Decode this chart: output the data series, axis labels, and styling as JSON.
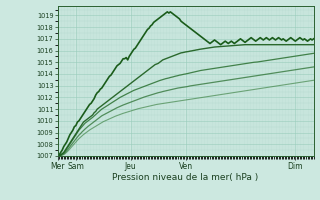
{
  "xlabel": "Pression niveau de la mer( hPa )",
  "bg_color": "#cce8e0",
  "plot_bg_color": "#cce8e0",
  "grid_color": "#99ccbb",
  "ylim": [
    1007,
    1019.8
  ],
  "yticks": [
    1007,
    1008,
    1009,
    1010,
    1011,
    1012,
    1013,
    1014,
    1015,
    1016,
    1017,
    1018,
    1019
  ],
  "xtick_labels": [
    "Mer",
    "Sam",
    "Jeu",
    "Ven",
    "Dim"
  ],
  "xtick_positions": [
    0,
    12,
    48,
    84,
    156
  ],
  "total_points": 169,
  "lines": [
    {
      "comment": "jagged observed/forecast line - peaks at Ven ~1019.3 then drops to ~1017",
      "color": "#1a5c1a",
      "lw": 1.2,
      "alpha": 1.0,
      "y": [
        1007.0,
        1007.1,
        1007.3,
        1007.5,
        1007.8,
        1008.0,
        1008.2,
        1008.5,
        1008.8,
        1009.0,
        1009.2,
        1009.5,
        1009.6,
        1009.9,
        1010.0,
        1010.2,
        1010.4,
        1010.6,
        1010.8,
        1011.0,
        1011.2,
        1011.4,
        1011.5,
        1011.7,
        1011.9,
        1012.2,
        1012.4,
        1012.5,
        1012.7,
        1012.8,
        1013.0,
        1013.2,
        1013.4,
        1013.6,
        1013.8,
        1013.9,
        1014.1,
        1014.3,
        1014.5,
        1014.7,
        1014.8,
        1014.9,
        1015.1,
        1015.3,
        1015.3,
        1015.4,
        1015.2,
        1015.5,
        1015.7,
        1015.9,
        1016.1,
        1016.2,
        1016.4,
        1016.6,
        1016.8,
        1017.0,
        1017.2,
        1017.4,
        1017.6,
        1017.8,
        1017.9,
        1018.1,
        1018.2,
        1018.4,
        1018.5,
        1018.6,
        1018.7,
        1018.8,
        1018.9,
        1019.0,
        1019.1,
        1019.2,
        1019.3,
        1019.2,
        1019.3,
        1019.2,
        1019.1,
        1019.0,
        1018.9,
        1018.8,
        1018.7,
        1018.5,
        1018.4,
        1018.3,
        1018.2,
        1018.1,
        1018.0,
        1017.9,
        1017.8,
        1017.7,
        1017.6,
        1017.5,
        1017.4,
        1017.3,
        1017.2,
        1017.1,
        1017.0,
        1016.9,
        1016.8,
        1016.7,
        1016.6,
        1016.7,
        1016.8,
        1016.9,
        1016.8,
        1016.7,
        1016.6,
        1016.5,
        1016.6,
        1016.7,
        1016.8,
        1016.7,
        1016.6,
        1016.7,
        1016.8,
        1016.7,
        1016.6,
        1016.7,
        1016.8,
        1016.9,
        1017.0,
        1016.9,
        1016.8,
        1016.7,
        1016.8,
        1016.9,
        1017.0,
        1017.1,
        1017.0,
        1016.9,
        1016.8,
        1016.9,
        1017.0,
        1017.1,
        1017.0,
        1016.9,
        1017.0,
        1017.1,
        1017.0,
        1016.9,
        1017.0,
        1017.1,
        1017.0,
        1016.9,
        1017.0,
        1017.1,
        1017.0,
        1016.9,
        1017.0,
        1016.9,
        1016.8,
        1016.9,
        1017.0,
        1017.1,
        1017.0,
        1016.9,
        1016.8,
        1016.9,
        1017.0,
        1017.1,
        1017.0,
        1016.9,
        1017.0,
        1016.9,
        1016.8,
        1016.9,
        1017.0,
        1016.9,
        1017.0
      ]
    },
    {
      "comment": "straight forecast line going to ~1016.5 at end",
      "color": "#1a5c1a",
      "lw": 1.0,
      "alpha": 0.9,
      "y": [
        1007.0,
        1007.05,
        1007.1,
        1007.2,
        1007.3,
        1007.5,
        1007.7,
        1007.9,
        1008.1,
        1008.3,
        1008.5,
        1008.7,
        1008.9,
        1009.1,
        1009.3,
        1009.5,
        1009.7,
        1009.9,
        1010.0,
        1010.1,
        1010.2,
        1010.3,
        1010.4,
        1010.5,
        1010.7,
        1010.8,
        1011.0,
        1011.1,
        1011.2,
        1011.3,
        1011.4,
        1011.5,
        1011.6,
        1011.7,
        1011.8,
        1011.9,
        1012.0,
        1012.1,
        1012.2,
        1012.3,
        1012.4,
        1012.5,
        1012.6,
        1012.7,
        1012.8,
        1012.9,
        1013.0,
        1013.1,
        1013.2,
        1013.3,
        1013.4,
        1013.5,
        1013.6,
        1013.7,
        1013.8,
        1013.9,
        1014.0,
        1014.1,
        1014.2,
        1014.3,
        1014.4,
        1014.5,
        1014.6,
        1014.7,
        1014.8,
        1014.85,
        1014.9,
        1015.0,
        1015.1,
        1015.2,
        1015.25,
        1015.3,
        1015.35,
        1015.4,
        1015.45,
        1015.5,
        1015.55,
        1015.6,
        1015.65,
        1015.7,
        1015.75,
        1015.8,
        1015.82,
        1015.85,
        1015.88,
        1015.9,
        1015.92,
        1015.95,
        1015.97,
        1016.0,
        1016.02,
        1016.05,
        1016.07,
        1016.1,
        1016.12,
        1016.14,
        1016.16,
        1016.18,
        1016.2,
        1016.22,
        1016.24,
        1016.26,
        1016.28,
        1016.3,
        1016.31,
        1016.32,
        1016.33,
        1016.34,
        1016.35,
        1016.36,
        1016.37,
        1016.38,
        1016.39,
        1016.4,
        1016.41,
        1016.42,
        1016.43,
        1016.44,
        1016.45,
        1016.46,
        1016.47,
        1016.48,
        1016.49,
        1016.5,
        1016.5,
        1016.5,
        1016.5,
        1016.5,
        1016.5,
        1016.5,
        1016.5,
        1016.5,
        1016.5,
        1016.5,
        1016.5,
        1016.5,
        1016.5,
        1016.5,
        1016.5,
        1016.5,
        1016.5,
        1016.5,
        1016.5,
        1016.5,
        1016.5,
        1016.5,
        1016.5,
        1016.5,
        1016.5,
        1016.5,
        1016.5,
        1016.5,
        1016.5,
        1016.5,
        1016.5,
        1016.5,
        1016.5,
        1016.5,
        1016.5,
        1016.5,
        1016.5,
        1016.5,
        1016.5,
        1016.5,
        1016.5,
        1016.5,
        1016.5,
        1016.5,
        1016.5
      ]
    },
    {
      "comment": "straight forecast going to ~1015.8",
      "color": "#2a7030",
      "lw": 0.9,
      "alpha": 0.85,
      "y": [
        1007.0,
        1007.04,
        1007.08,
        1007.15,
        1007.25,
        1007.4,
        1007.6,
        1007.8,
        1008.0,
        1008.2,
        1008.4,
        1008.6,
        1008.8,
        1009.0,
        1009.2,
        1009.35,
        1009.5,
        1009.65,
        1009.8,
        1009.9,
        1010.0,
        1010.1,
        1010.2,
        1010.3,
        1010.42,
        1010.54,
        1010.65,
        1010.77,
        1010.88,
        1011.0,
        1011.08,
        1011.17,
        1011.25,
        1011.33,
        1011.42,
        1011.5,
        1011.58,
        1011.67,
        1011.75,
        1011.83,
        1011.92,
        1012.0,
        1012.07,
        1012.13,
        1012.2,
        1012.27,
        1012.33,
        1012.4,
        1012.47,
        1012.53,
        1012.6,
        1012.65,
        1012.7,
        1012.75,
        1012.8,
        1012.85,
        1012.9,
        1012.95,
        1013.0,
        1013.05,
        1013.1,
        1013.15,
        1013.2,
        1013.25,
        1013.3,
        1013.35,
        1013.4,
        1013.44,
        1013.48,
        1013.52,
        1013.56,
        1013.6,
        1013.63,
        1013.66,
        1013.7,
        1013.73,
        1013.76,
        1013.8,
        1013.83,
        1013.86,
        1013.9,
        1013.92,
        1013.95,
        1013.98,
        1014.0,
        1014.03,
        1014.06,
        1014.09,
        1014.12,
        1014.15,
        1014.18,
        1014.21,
        1014.24,
        1014.27,
        1014.3,
        1014.32,
        1014.34,
        1014.36,
        1014.38,
        1014.4,
        1014.42,
        1014.44,
        1014.46,
        1014.48,
        1014.5,
        1014.52,
        1014.54,
        1014.56,
        1014.58,
        1014.6,
        1014.62,
        1014.64,
        1014.66,
        1014.68,
        1014.7,
        1014.72,
        1014.74,
        1014.76,
        1014.78,
        1014.8,
        1014.82,
        1014.84,
        1014.86,
        1014.88,
        1014.9,
        1014.92,
        1014.94,
        1014.96,
        1014.98,
        1015.0,
        1015.01,
        1015.02,
        1015.04,
        1015.06,
        1015.08,
        1015.1,
        1015.12,
        1015.14,
        1015.16,
        1015.18,
        1015.2,
        1015.22,
        1015.24,
        1015.26,
        1015.28,
        1015.3,
        1015.32,
        1015.34,
        1015.36,
        1015.38,
        1015.4,
        1015.42,
        1015.44,
        1015.46,
        1015.48,
        1015.5,
        1015.52,
        1015.54,
        1015.56,
        1015.58,
        1015.6,
        1015.62,
        1015.64,
        1015.66,
        1015.68,
        1015.7,
        1015.72,
        1015.74,
        1015.76
      ]
    },
    {
      "comment": "straight forecast going to ~1015.2",
      "color": "#2a7030",
      "lw": 0.9,
      "alpha": 0.75,
      "y": [
        1007.0,
        1007.03,
        1007.06,
        1007.1,
        1007.18,
        1007.3,
        1007.45,
        1007.6,
        1007.78,
        1007.95,
        1008.12,
        1008.28,
        1008.45,
        1008.62,
        1008.78,
        1008.9,
        1009.05,
        1009.18,
        1009.3,
        1009.42,
        1009.53,
        1009.63,
        1009.73,
        1009.83,
        1009.93,
        1010.03,
        1010.13,
        1010.23,
        1010.33,
        1010.43,
        1010.5,
        1010.57,
        1010.64,
        1010.71,
        1010.78,
        1010.85,
        1010.92,
        1011.0,
        1011.06,
        1011.12,
        1011.18,
        1011.24,
        1011.3,
        1011.35,
        1011.4,
        1011.45,
        1011.5,
        1011.55,
        1011.6,
        1011.65,
        1011.7,
        1011.75,
        1011.8,
        1011.85,
        1011.9,
        1011.95,
        1012.0,
        1012.04,
        1012.08,
        1012.12,
        1012.16,
        1012.2,
        1012.24,
        1012.28,
        1012.32,
        1012.36,
        1012.4,
        1012.43,
        1012.46,
        1012.5,
        1012.53,
        1012.56,
        1012.59,
        1012.62,
        1012.65,
        1012.68,
        1012.71,
        1012.74,
        1012.77,
        1012.8,
        1012.82,
        1012.84,
        1012.86,
        1012.88,
        1012.9,
        1012.92,
        1012.95,
        1012.98,
        1013.0,
        1013.02,
        1013.04,
        1013.06,
        1013.08,
        1013.1,
        1013.12,
        1013.14,
        1013.16,
        1013.18,
        1013.2,
        1013.22,
        1013.24,
        1013.26,
        1013.28,
        1013.3,
        1013.32,
        1013.34,
        1013.36,
        1013.38,
        1013.4,
        1013.42,
        1013.44,
        1013.46,
        1013.48,
        1013.5,
        1013.52,
        1013.54,
        1013.56,
        1013.58,
        1013.6,
        1013.62,
        1013.64,
        1013.66,
        1013.68,
        1013.7,
        1013.72,
        1013.74,
        1013.76,
        1013.78,
        1013.8,
        1013.82,
        1013.84,
        1013.86,
        1013.88,
        1013.9,
        1013.92,
        1013.94,
        1013.96,
        1013.98,
        1014.0,
        1014.02,
        1014.04,
        1014.06,
        1014.08,
        1014.1,
        1014.12,
        1014.14,
        1014.16,
        1014.18,
        1014.2,
        1014.22,
        1014.24,
        1014.26,
        1014.28,
        1014.3,
        1014.32,
        1014.34,
        1014.36,
        1014.38,
        1014.4,
        1014.42,
        1014.44,
        1014.46,
        1014.48,
        1014.5,
        1014.52,
        1014.54,
        1014.56,
        1014.58,
        1014.6
      ]
    },
    {
      "comment": "lowest straight forecast going to ~1015.0",
      "color": "#3a8040",
      "lw": 0.8,
      "alpha": 0.65,
      "y": [
        1007.0,
        1007.02,
        1007.04,
        1007.07,
        1007.12,
        1007.2,
        1007.32,
        1007.45,
        1007.6,
        1007.75,
        1007.9,
        1008.05,
        1008.2,
        1008.34,
        1008.48,
        1008.6,
        1008.72,
        1008.83,
        1008.93,
        1009.03,
        1009.13,
        1009.22,
        1009.3,
        1009.39,
        1009.47,
        1009.55,
        1009.63,
        1009.71,
        1009.79,
        1009.87,
        1009.93,
        1009.99,
        1010.05,
        1010.11,
        1010.17,
        1010.23,
        1010.29,
        1010.35,
        1010.4,
        1010.45,
        1010.5,
        1010.55,
        1010.6,
        1010.64,
        1010.68,
        1010.72,
        1010.76,
        1010.8,
        1010.84,
        1010.88,
        1010.92,
        1010.96,
        1011.0,
        1011.04,
        1011.07,
        1011.1,
        1011.13,
        1011.16,
        1011.19,
        1011.22,
        1011.25,
        1011.28,
        1011.31,
        1011.34,
        1011.37,
        1011.4,
        1011.42,
        1011.44,
        1011.46,
        1011.48,
        1011.5,
        1011.52,
        1011.54,
        1011.56,
        1011.58,
        1011.6,
        1011.62,
        1011.64,
        1011.66,
        1011.68,
        1011.7,
        1011.72,
        1011.74,
        1011.76,
        1011.78,
        1011.8,
        1011.82,
        1011.84,
        1011.86,
        1011.88,
        1011.9,
        1011.92,
        1011.94,
        1011.96,
        1011.98,
        1012.0,
        1012.02,
        1012.04,
        1012.06,
        1012.08,
        1012.1,
        1012.12,
        1012.14,
        1012.16,
        1012.18,
        1012.2,
        1012.22,
        1012.24,
        1012.26,
        1012.28,
        1012.3,
        1012.32,
        1012.34,
        1012.36,
        1012.38,
        1012.4,
        1012.42,
        1012.44,
        1012.46,
        1012.48,
        1012.5,
        1012.52,
        1012.54,
        1012.56,
        1012.58,
        1012.6,
        1012.62,
        1012.64,
        1012.66,
        1012.68,
        1012.7,
        1012.72,
        1012.74,
        1012.76,
        1012.78,
        1012.8,
        1012.82,
        1012.84,
        1012.86,
        1012.88,
        1012.9,
        1012.92,
        1012.94,
        1012.96,
        1012.98,
        1013.0,
        1013.02,
        1013.04,
        1013.06,
        1013.08,
        1013.1,
        1013.12,
        1013.14,
        1013.16,
        1013.18,
        1013.2,
        1013.22,
        1013.24,
        1013.26,
        1013.28,
        1013.3,
        1013.32,
        1013.34,
        1013.36,
        1013.38,
        1013.4,
        1013.42,
        1013.44,
        1013.46
      ]
    }
  ]
}
